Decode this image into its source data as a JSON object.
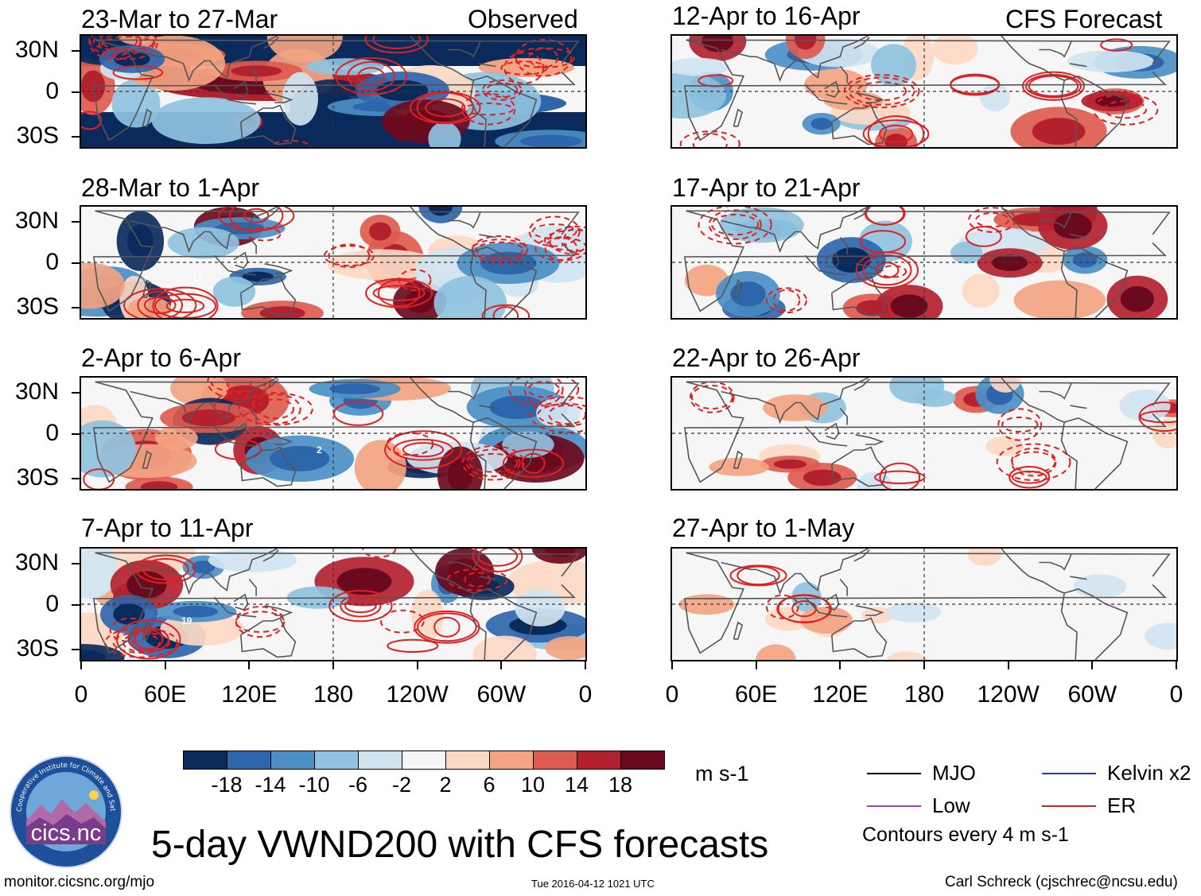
{
  "left_header": "Observed",
  "right_header": "CFS Forecast",
  "panels_left": [
    {
      "title": "23-Mar to 27-Mar",
      "type": "obs",
      "label": ""
    },
    {
      "title": "28-Mar to 1-Apr",
      "type": "obs",
      "label": "17"
    },
    {
      "title": "2-Apr to 6-Apr",
      "type": "obs",
      "label": "2"
    },
    {
      "title": "7-Apr to 11-Apr",
      "type": "obs",
      "label": "19"
    }
  ],
  "panels_right": [
    {
      "title": "12-Apr to 16-Apr",
      "type": "fcst"
    },
    {
      "title": "17-Apr to 21-Apr",
      "type": "fcst"
    },
    {
      "title": "22-Apr to 26-Apr",
      "type": "fcst"
    },
    {
      "title": "27-Apr to 1-May",
      "type": "fcst"
    }
  ],
  "lat_labels": [
    "30N",
    "0",
    "30S"
  ],
  "lon_labels": [
    "0",
    "60E",
    "120E",
    "180",
    "120W",
    "60W",
    "0"
  ],
  "colorbar": {
    "colors": [
      "#0b2a5c",
      "#2e66ac",
      "#4b8fc5",
      "#8fc2e0",
      "#cfe4f0",
      "#f6f6f6",
      "#fcd9c4",
      "#f3a482",
      "#dd5b4f",
      "#b3212f",
      "#6b0a1e"
    ],
    "labels": [
      "-18",
      "-14",
      "-10",
      "-6",
      "-2",
      "2",
      "6",
      "10",
      "14",
      "18"
    ],
    "units": "m s-1"
  },
  "legend": [
    {
      "name": "MJO",
      "color": "#000000"
    },
    {
      "name": "Kelvin x2",
      "color": "#2233cc"
    },
    {
      "name": "Low",
      "color": "#a040d0"
    },
    {
      "name": "ER",
      "color": "#e02020"
    }
  ],
  "contour_note": "Contours every 4 m s-1",
  "main_title": "5-day VWND200 with CFS forecasts",
  "logo_text": "cics.nc",
  "logo_ring_text": "Cooperative Institute for Climate and Satellites",
  "footer": {
    "url": "monitor.cicsnc.org/mjo",
    "timestamp": "Tue 2016-04-12 1021 UTC",
    "author": "Carl Schreck (cjschrec@ncsu.edu)"
  }
}
